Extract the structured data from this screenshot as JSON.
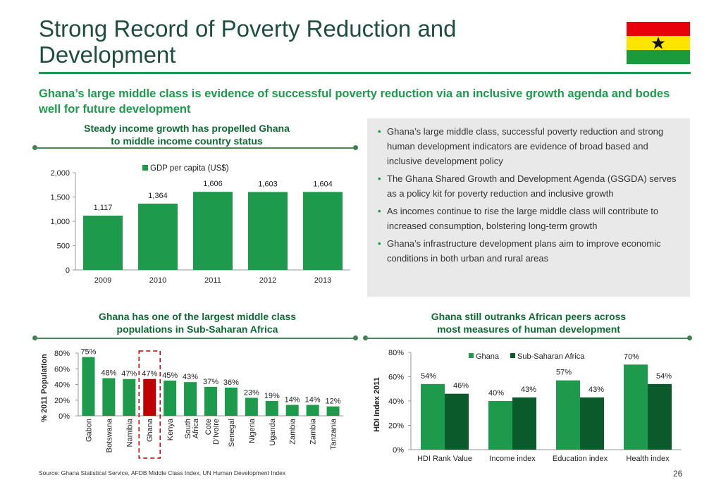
{
  "title": "Strong Record of Poverty Reduction and Development",
  "title_lines": [
    "Strong Record of Poverty Reduction and",
    "Development"
  ],
  "subtitle": "Ghana’s large middle class is evidence of successful poverty reduction via an inclusive growth agenda and bodes well for future development",
  "colors": {
    "accent": "#1e9a4c",
    "dark_green": "#0b5a2b",
    "highlight_red": "#c00000",
    "flag_red": "#e8000b",
    "flag_yellow": "#ffe400",
    "flag_green": "#1a9a3a",
    "star": "#111111"
  },
  "panel1": {
    "title_lines": [
      "Steady income growth has propelled Ghana",
      "to middle income country status"
    ]
  },
  "panel2": {
    "title_lines": [
      "Ghana has one of the largest middle class",
      "populations in Sub-Saharan Africa"
    ]
  },
  "panel3": {
    "title_lines": [
      "Ghana still outranks African peers across",
      "most measures of human development"
    ]
  },
  "bullets": [
    "Ghana’s large middle class, successful poverty reduction and strong human development indicators are evidence of broad based and inclusive development policy",
    "The Ghana Shared Growth and Development Agenda (GSGDA) serves as a policy kit for poverty reduction and inclusive growth",
    "As incomes continue to rise the large middle class will contribute to increased consumption, bolstering long-term growth",
    "Ghana’s infrastructure development plans aim to improve economic conditions in both urban and rural areas"
  ],
  "source": "Source: Ghana Statistical Service, AFDB Middle Class Index, UN Human Development Index",
  "page_number": "26",
  "flag_icon": "ghana-flag-icon",
  "chart_data": [
    {
      "type": "bar",
      "categories": [
        "2009",
        "2010",
        "2011",
        "2012",
        "2013"
      ],
      "series": [
        {
          "name": "GDP per capita (US$)",
          "values": [
            1117,
            1364,
            1606,
            1603,
            1604
          ]
        }
      ],
      "value_labels": [
        "1,117",
        "1,364",
        "1,606",
        "1,603",
        "1,604"
      ],
      "yticks": [
        "0",
        "500",
        "1,000",
        "1,500",
        "2,000"
      ],
      "ylim": [
        0,
        2000
      ],
      "legend": "top",
      "grid": false
    },
    {
      "type": "bar",
      "categories": [
        "Gabon",
        "Botswana",
        "Namibia",
        "Ghana",
        "Kenya",
        "South Africa",
        "Cote D'Ivoire",
        "Senegal",
        "Nigeria",
        "Uganda",
        "Zambia",
        "Zambia",
        "Tanzania"
      ],
      "values": [
        75,
        48,
        47,
        47,
        45,
        43,
        37,
        36,
        23,
        19,
        14,
        14,
        12
      ],
      "value_labels": [
        "75%",
        "48%",
        "47%",
        "47%",
        "45%",
        "43%",
        "37%",
        "36%",
        "23%",
        "19%",
        "14%",
        "14%",
        "12%"
      ],
      "highlight": "Ghana",
      "ylabel": "% 2011 Population",
      "yticks": [
        "0%",
        "20%",
        "40%",
        "60%",
        "80%"
      ],
      "ylim": [
        0,
        80
      ],
      "grid": false
    },
    {
      "type": "bar",
      "categories": [
        "HDI Rank Value",
        "Income index",
        "Education index",
        "Health index"
      ],
      "series": [
        {
          "name": "Ghana",
          "values": [
            54,
            40,
            57,
            70
          ],
          "labels": [
            "54%",
            "40%",
            "57%",
            "70%"
          ]
        },
        {
          "name": "Sub-Saharan Africa",
          "values": [
            46,
            43,
            43,
            54
          ],
          "labels": [
            "46%",
            "43%",
            "43%",
            "54%"
          ]
        }
      ],
      "ylabel": "HDI Index 2011",
      "yticks": [
        "0%",
        "20%",
        "40%",
        "60%",
        "80%"
      ],
      "ylim": [
        0,
        80
      ],
      "legend": "top",
      "grid": false
    }
  ]
}
